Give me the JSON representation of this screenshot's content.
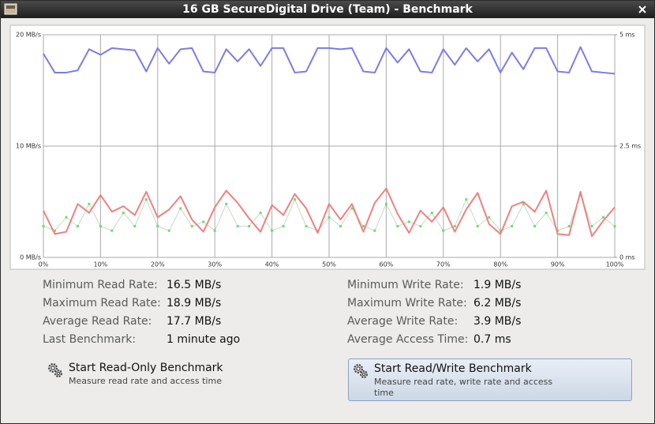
{
  "window": {
    "title": "16 GB SecureDigital Drive (Team) - Benchmark"
  },
  "chart_data": {
    "type": "line",
    "x": [
      0,
      2,
      4,
      6,
      8,
      10,
      12,
      14,
      16,
      18,
      20,
      22,
      24,
      26,
      28,
      30,
      32,
      34,
      36,
      38,
      40,
      42,
      44,
      46,
      48,
      50,
      52,
      54,
      56,
      58,
      60,
      62,
      64,
      66,
      68,
      70,
      72,
      74,
      76,
      78,
      80,
      82,
      84,
      86,
      88,
      90,
      92,
      94,
      96,
      98,
      100
    ],
    "xlim": [
      0,
      100
    ],
    "xticks": [
      {
        "value": 0,
        "label": "0%"
      },
      {
        "value": 10,
        "label": "10%"
      },
      {
        "value": 20,
        "label": "20%"
      },
      {
        "value": 30,
        "label": "30%"
      },
      {
        "value": 40,
        "label": "40%"
      },
      {
        "value": 50,
        "label": "50%"
      },
      {
        "value": 60,
        "label": "60%"
      },
      {
        "value": 70,
        "label": "70%"
      },
      {
        "value": 80,
        "label": "80%"
      },
      {
        "value": 90,
        "label": "90%"
      },
      {
        "value": 100,
        "label": "100%"
      }
    ],
    "ylim": [
      0,
      20
    ],
    "yticks": [
      {
        "value": 0,
        "label": "0 MB/s"
      },
      {
        "value": 10,
        "label": "10 MB/s"
      },
      {
        "value": 20,
        "label": "20 MB/s"
      }
    ],
    "y2lim": [
      0,
      5
    ],
    "y2ticks": [
      {
        "value": 0,
        "label": "0 ms"
      },
      {
        "value": 2.5,
        "label": "2.5 ms"
      },
      {
        "value": 5,
        "label": "5 ms"
      }
    ],
    "grid": true,
    "series": [
      {
        "color": "#7b7be8",
        "values": [
          18.3,
          16.6,
          16.6,
          16.8,
          18.7,
          18.2,
          18.8,
          18.7,
          18.6,
          16.7,
          18.8,
          17.4,
          18.7,
          18.8,
          16.7,
          16.6,
          18.7,
          17.6,
          18.7,
          17.2,
          18.8,
          18.8,
          16.6,
          16.7,
          18.8,
          18.8,
          18.7,
          18.8,
          16.7,
          16.6,
          18.8,
          17.5,
          18.7,
          16.7,
          16.6,
          18.7,
          17.3,
          18.8,
          17.6,
          18.7,
          16.6,
          18.4,
          16.9,
          18.8,
          18.8,
          16.7,
          16.6,
          18.9,
          16.7,
          16.6,
          16.5
        ]
      },
      {
        "color": "#f08080",
        "values": [
          4.2,
          2.1,
          2.3,
          4.8,
          4.0,
          5.6,
          4.1,
          4.6,
          3.8,
          5.9,
          3.6,
          4.3,
          5.5,
          3.4,
          2.3,
          4.5,
          6.0,
          4.9,
          3.5,
          2.3,
          4.7,
          3.8,
          5.7,
          4.4,
          2.2,
          4.8,
          3.4,
          4.8,
          2.3,
          4.9,
          6.2,
          3.9,
          2.2,
          4.2,
          3.2,
          4.5,
          2.3,
          4.3,
          5.8,
          3.0,
          2.1,
          4.6,
          5.0,
          4.1,
          6.0,
          2.1,
          2.0,
          5.9,
          1.9,
          3.3,
          4.5
        ]
      },
      {
        "type": "scatter",
        "axis": "y2",
        "color": "#6fdc6f",
        "values": [
          0.7,
          0.6,
          0.9,
          0.7,
          1.2,
          0.7,
          0.6,
          1.0,
          0.7,
          1.3,
          0.7,
          0.6,
          1.1,
          0.7,
          0.8,
          0.6,
          1.2,
          0.7,
          0.7,
          1.0,
          0.6,
          0.7,
          1.3,
          0.7,
          0.6,
          0.9,
          0.7,
          1.1,
          0.7,
          0.6,
          1.2,
          0.7,
          0.8,
          0.7,
          1.0,
          0.6,
          0.7,
          1.3,
          0.7,
          0.9,
          0.6,
          0.7,
          1.2,
          0.7,
          1.0,
          0.6,
          0.7,
          1.4,
          0.7,
          0.9,
          0.7
        ]
      }
    ]
  },
  "stats": [
    {
      "label": "Minimum Read Rate:",
      "value": "16.5 MB/s"
    },
    {
      "label": "Maximum Read Rate:",
      "value": "18.9 MB/s"
    },
    {
      "label": "Average Read Rate:",
      "value": "17.7 MB/s"
    },
    {
      "label": "Last Benchmark:",
      "value": "1 minute ago"
    },
    {
      "label": "Minimum Write Rate:",
      "value": "1.9 MB/s"
    },
    {
      "label": "Maximum Write Rate:",
      "value": "6.2 MB/s"
    },
    {
      "label": "Average Write Rate:",
      "value": "3.9 MB/s"
    },
    {
      "label": "Average Access Time:",
      "value": "0.7 ms"
    }
  ],
  "buttons": [
    {
      "title": "Start Read-Only Benchmark",
      "description": "Measure read rate and access time"
    },
    {
      "title": "Start Read/Write Benchmark",
      "description": "Measure read rate, write rate and access time"
    }
  ]
}
